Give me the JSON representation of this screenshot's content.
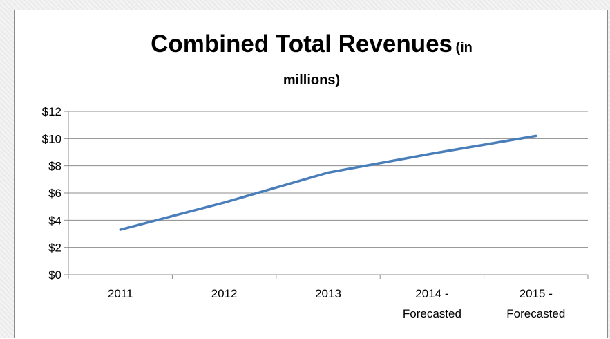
{
  "chart_data": {
    "type": "line",
    "title": "Combined Total Revenues",
    "title_suffix_line1": "(in",
    "title_suffix_line2": "millions)",
    "categories": [
      [
        "2011"
      ],
      [
        "2012"
      ],
      [
        "2013"
      ],
      [
        "2014 -",
        "Forecasted"
      ],
      [
        "2015 -",
        "Forecasted"
      ]
    ],
    "series": [
      {
        "values": [
          3.3,
          5.3,
          7.5,
          8.9,
          10.2
        ],
        "color": "#4a7ebb"
      }
    ],
    "ylim": [
      0,
      12
    ],
    "yticks": [
      0,
      2,
      4,
      6,
      8,
      10,
      12
    ],
    "ytick_labels": [
      "$0",
      "$2",
      "$4",
      "$6",
      "$8",
      "$10",
      "$12"
    ],
    "gridlines": true,
    "legend": "none"
  }
}
